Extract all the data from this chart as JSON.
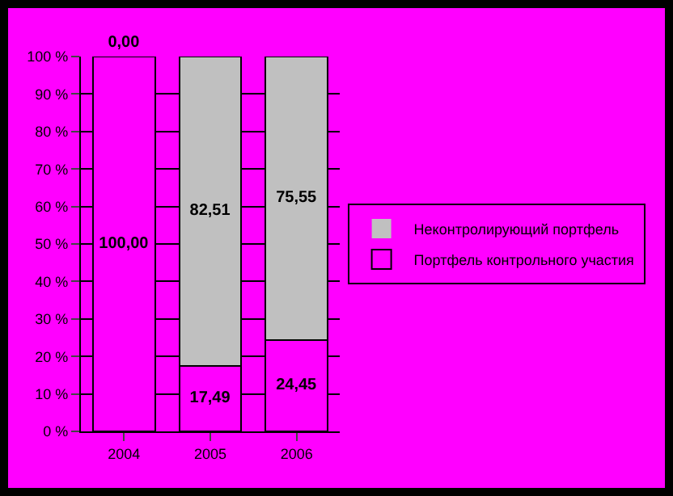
{
  "chart_data": {
    "type": "bar",
    "stacked": true,
    "categories": [
      "2004",
      "2005",
      "2006"
    ],
    "series": [
      {
        "name": "Портфель контрольного участия",
        "color": "#ff00ff",
        "values": [
          100,
          17.49,
          24.45
        ],
        "value_labels": [
          "100,00",
          "17,49",
          "24,45"
        ]
      },
      {
        "name": "Неконтролирующий портфель",
        "color": "#c0c0c0",
        "values": [
          0,
          82.51,
          75.55
        ],
        "value_labels": [
          "0,00",
          "82,51",
          "75,55"
        ]
      }
    ],
    "ylim": [
      0,
      100
    ],
    "yticks": [
      {
        "value": 0,
        "label": "0 %"
      },
      {
        "value": 10,
        "label": "10 %"
      },
      {
        "value": 20,
        "label": "20 %"
      },
      {
        "value": 30,
        "label": "30 %"
      },
      {
        "value": 40,
        "label": "40 %"
      },
      {
        "value": 50,
        "label": "50 %"
      },
      {
        "value": 60,
        "label": "60 %"
      },
      {
        "value": 70,
        "label": "70 %"
      },
      {
        "value": 80,
        "label": "80 %"
      },
      {
        "value": 90,
        "label": "90 %"
      },
      {
        "value": 100,
        "label": "100 %"
      }
    ],
    "grid": "y",
    "legend": "right"
  }
}
